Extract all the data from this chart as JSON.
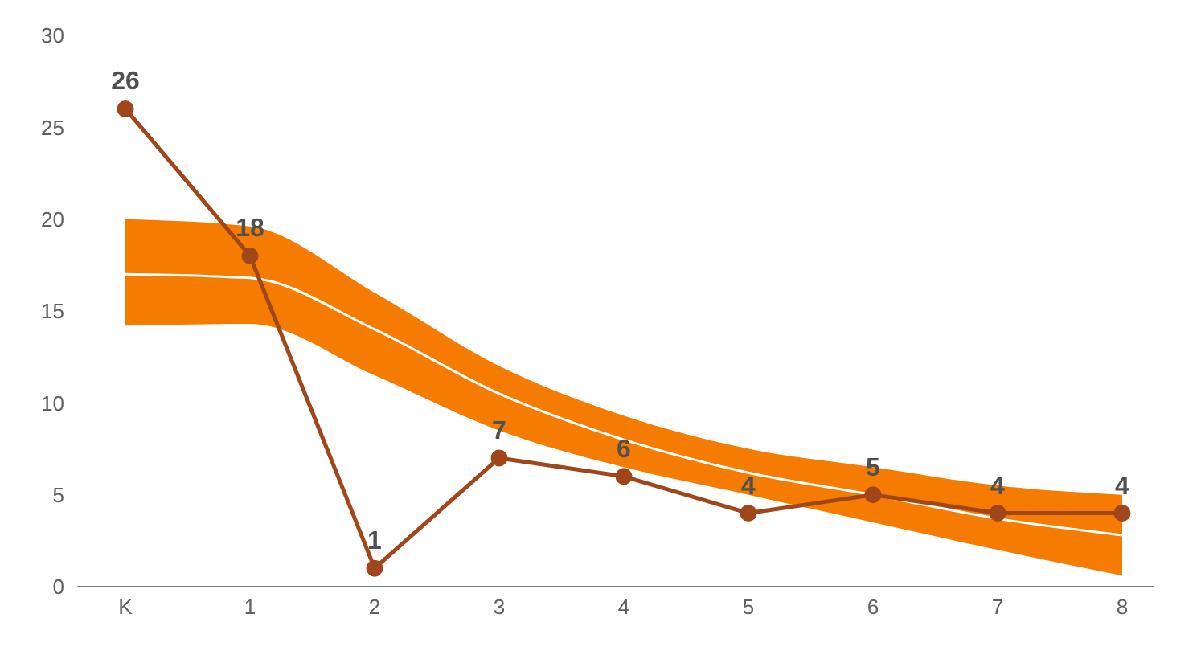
{
  "chart_data": {
    "type": "line",
    "categories": [
      "K",
      "1",
      "2",
      "3",
      "4",
      "5",
      "6",
      "7",
      "8"
    ],
    "series": [
      {
        "color": "#ffffff",
        "values": [
          17,
          16.8,
          14,
          10.5,
          8,
          6.2,
          5,
          3.7,
          2.8
        ],
        "lower": [
          14.2,
          14.3,
          11.5,
          8.5,
          6.5,
          5,
          3.5,
          2,
          0.6
        ],
        "upper": [
          20,
          19.6,
          16,
          12,
          9.3,
          7.5,
          6.5,
          5.5,
          5
        ]
      },
      {
        "color": "#a0461a",
        "values": [
          26,
          18,
          1,
          7,
          6,
          4,
          5,
          4,
          4
        ],
        "marker": "circle",
        "data_labels": true
      }
    ],
    "ylim": [
      0,
      30
    ],
    "yticks": [
      0,
      5,
      10,
      15,
      20,
      25,
      30
    ],
    "grid": false,
    "legend": false
  }
}
